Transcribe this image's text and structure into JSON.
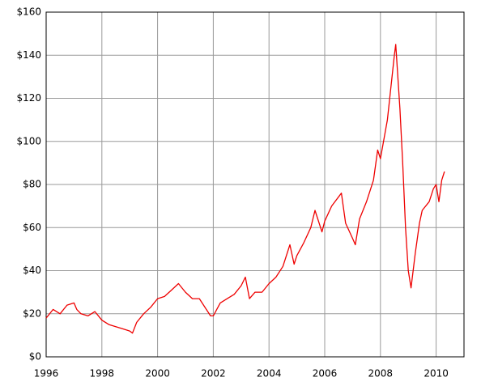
{
  "chart_data": {
    "type": "line",
    "x": [
      1996.0,
      1996.25,
      1996.5,
      1996.75,
      1997.0,
      1997.1,
      1997.25,
      1997.5,
      1997.75,
      1998.0,
      1998.25,
      1998.5,
      1998.75,
      1999.0,
      1999.1,
      1999.25,
      1999.5,
      1999.75,
      2000.0,
      2000.25,
      2000.5,
      2000.75,
      2001.0,
      2001.25,
      2001.5,
      2001.75,
      2001.9,
      2002.0,
      2002.25,
      2002.5,
      2002.75,
      2003.0,
      2003.15,
      2003.3,
      2003.5,
      2003.75,
      2004.0,
      2004.25,
      2004.5,
      2004.75,
      2004.9,
      2005.0,
      2005.25,
      2005.5,
      2005.65,
      2005.9,
      2006.0,
      2006.25,
      2006.6,
      2006.75,
      2007.0,
      2007.1,
      2007.25,
      2007.5,
      2007.75,
      2007.9,
      2008.0,
      2008.25,
      2008.5,
      2008.55,
      2008.7,
      2008.8,
      2008.9,
      2009.0,
      2009.1,
      2009.25,
      2009.4,
      2009.5,
      2009.75,
      2009.9,
      2010.0,
      2010.1,
      2010.2,
      2010.3
    ],
    "series": [
      {
        "color": "#ee0000",
        "values": [
          18,
          22,
          20,
          24,
          25,
          22,
          20,
          19,
          21,
          17,
          15,
          14,
          13,
          12,
          11,
          16,
          20,
          23,
          27,
          28,
          31,
          34,
          30,
          27,
          27,
          22,
          19,
          19,
          25,
          27,
          29,
          33,
          37,
          27,
          30,
          30,
          34,
          37,
          42,
          52,
          43,
          47,
          53,
          60,
          68,
          58,
          63,
          70,
          76,
          62,
          55,
          52,
          64,
          72,
          82,
          96,
          92,
          110,
          140,
          145,
          115,
          90,
          60,
          40,
          32,
          48,
          62,
          68,
          72,
          78,
          80,
          72,
          82,
          86
        ]
      }
    ],
    "xlim": [
      1996,
      2011
    ],
    "xticks": [
      1996,
      1998,
      2000,
      2002,
      2004,
      2006,
      2008,
      2010
    ],
    "ylim": [
      0,
      160
    ],
    "yticks": [
      {
        "value": 0,
        "label": "$0"
      },
      {
        "value": 20,
        "label": "$20"
      },
      {
        "value": 40,
        "label": "$40"
      },
      {
        "value": 60,
        "label": "$60"
      },
      {
        "value": 80,
        "label": "$80"
      },
      {
        "value": 100,
        "label": "$100"
      },
      {
        "value": 120,
        "label": "$120"
      },
      {
        "value": 140,
        "label": "$140"
      },
      {
        "value": 160,
        "label": "$160"
      }
    ],
    "grid": true
  }
}
